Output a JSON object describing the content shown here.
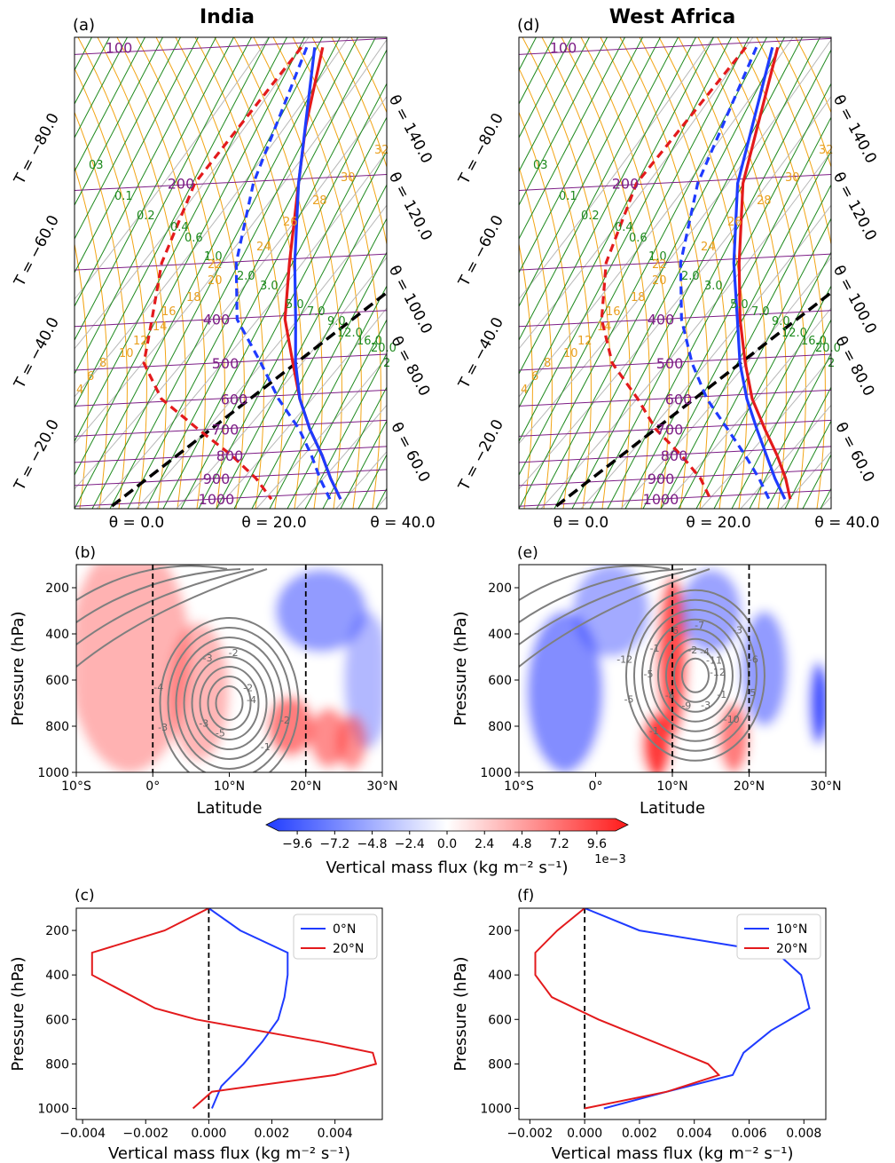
{
  "panels": {
    "a": {
      "letter": "(a)",
      "title": "India"
    },
    "d": {
      "letter": "(d)",
      "title": "West Africa"
    },
    "b": {
      "letter": "(b)"
    },
    "e": {
      "letter": "(e)"
    },
    "c": {
      "letter": "(c)"
    },
    "f": {
      "letter": "(f)"
    }
  },
  "colorbar": {
    "label": "Vertical mass flux (kg m⁻² s⁻¹)",
    "scale_note": "1e−3",
    "ticks": [
      "−9.6",
      "−7.2",
      "−4.8",
      "−2.4",
      "0.0",
      "2.4",
      "4.8",
      "7.2",
      "9.6"
    ],
    "colors": {
      "negative": "#1f3bff",
      "zero": "#ffffff",
      "positive": "#ff1a1a"
    }
  },
  "chart_data": [
    {
      "id": "a",
      "type": "line",
      "title": "India",
      "isobar_labels": [
        "100",
        "200",
        "400",
        "500",
        "600",
        "700",
        "800",
        "900",
        "1000"
      ],
      "left_labels": [
        "T = −80.0",
        "T = −60.0",
        "T = −40.0",
        "T = −20.0"
      ],
      "right_labels": [
        "θ = 140.0",
        "θ = 120.0",
        "θ = 100.0",
        "θ = 80.0",
        "θ = 60.0"
      ],
      "bottom_labels": [
        "θ = 0.0",
        "θ = 20.0",
        "θ = 40.0"
      ],
      "mixing_ratio_labels": [
        "03",
        "0.1",
        "0.2",
        "0.4",
        "0.6",
        "1.0",
        "2.0",
        "3.0",
        "5.0",
        "7.0",
        "9.0",
        "12.0",
        "16.0",
        "20.0",
        "2"
      ],
      "theta_e_labels": [
        "4",
        "6",
        "8",
        "10",
        "12",
        "14",
        "16",
        "18",
        "20",
        "22",
        "24",
        "26",
        "28",
        "30",
        "32"
      ],
      "series": [
        {
          "name": "",
          "color": "#e31a1c",
          "style": "solid",
          "pressure": [
            100,
            150,
            200,
            300,
            400,
            500,
            600,
            700,
            800,
            900,
            1000
          ],
          "temperature": [
            -82,
            -72,
            -63,
            -50,
            -40,
            -28,
            -18,
            -8,
            2,
            10,
            18
          ]
        },
        {
          "name": "",
          "color": "#e31a1c",
          "style": "dashed",
          "pressure": [
            100,
            200,
            300,
            400,
            500,
            600,
            700,
            800,
            900,
            1000
          ],
          "temperature": [
            -90,
            -102,
            -98,
            -90,
            -84,
            -70,
            -50,
            -32,
            -18,
            -8
          ]
        },
        {
          "name": "",
          "color": "#1f3bff",
          "style": "solid",
          "pressure": [
            100,
            200,
            300,
            400,
            500,
            600,
            700,
            800,
            900,
            1000
          ],
          "temperature": [
            -85,
            -63,
            -48,
            -36,
            -27,
            -18,
            -8,
            2,
            10,
            18
          ]
        },
        {
          "name": "",
          "color": "#1f3bff",
          "style": "dashed",
          "pressure": [
            100,
            200,
            300,
            400,
            500,
            600,
            700,
            800,
            900,
            1000
          ],
          "temperature": [
            -88,
            -80,
            -70,
            -58,
            -40,
            -26,
            -12,
            -2,
            6,
            14
          ]
        }
      ]
    },
    {
      "id": "d",
      "type": "line",
      "title": "West Africa",
      "isobar_labels": [
        "100",
        "200",
        "400",
        "500",
        "600",
        "700",
        "800",
        "900",
        "1000"
      ],
      "left_labels": [
        "T = −80.0",
        "T = −60.0",
        "T = −40.0",
        "T = −20.0"
      ],
      "right_labels": [
        "θ = 140.0",
        "θ = 120.0",
        "θ = 100.0",
        "θ = 80.0",
        "θ = 60.0"
      ],
      "bottom_labels": [
        "θ = 0.0",
        "θ = 20.0",
        "θ = 40.0"
      ],
      "mixing_ratio_labels": [
        "03",
        "0.1",
        "0.2",
        "0.4",
        "0.6",
        "1.0",
        "2.0",
        "3.0",
        "5.0",
        "7.0",
        "9.0",
        "12.0",
        "16.0",
        "20.0",
        "2"
      ],
      "theta_e_labels": [
        "4",
        "6",
        "8",
        "10",
        "12",
        "14",
        "16",
        "18",
        "20",
        "22",
        "24",
        "26",
        "28",
        "30",
        "32"
      ],
      "series": [
        {
          "name": "",
          "color": "#e31a1c",
          "style": "solid",
          "pressure": [
            100,
            200,
            300,
            400,
            500,
            600,
            700,
            800,
            900,
            1000
          ],
          "temperature": [
            -78,
            -63,
            -48,
            -36,
            -25,
            -15,
            -4,
            6,
            14,
            20
          ]
        },
        {
          "name": "",
          "color": "#e31a1c",
          "style": "dashed",
          "pressure": [
            100,
            200,
            300,
            400,
            500,
            600,
            700,
            800,
            900,
            1000
          ],
          "temperature": [
            -90,
            -103,
            -98,
            -88,
            -75,
            -58,
            -45,
            -30,
            -18,
            -10
          ]
        },
        {
          "name": "",
          "color": "#1f3bff",
          "style": "solid",
          "pressure": [
            100,
            200,
            300,
            400,
            500,
            600,
            700,
            800,
            900,
            1000
          ],
          "temperature": [
            -80,
            -65,
            -50,
            -37,
            -27,
            -17,
            -7,
            2,
            10,
            18
          ]
        },
        {
          "name": "",
          "color": "#1f3bff",
          "style": "dashed",
          "pressure": [
            100,
            200,
            300,
            400,
            500,
            600,
            700,
            800,
            900,
            1000
          ],
          "temperature": [
            -86,
            -80,
            -70,
            -58,
            -45,
            -32,
            -18,
            -6,
            4,
            12
          ]
        }
      ]
    },
    {
      "id": "b",
      "type": "heatmap",
      "xlabel": "Latitude",
      "ylabel": "Pressure (hPa)",
      "xticks": [
        "10°S",
        "0°",
        "10°N",
        "20°N",
        "30°N"
      ],
      "yticks": [
        "200",
        "400",
        "600",
        "800",
        "1000"
      ],
      "xlim": [
        -10,
        30
      ],
      "ylim": [
        1000,
        100
      ],
      "vlines": [
        0,
        20
      ],
      "contour_labels": [
        "-4",
        "-3",
        "-2",
        "-1",
        "-4",
        "-2",
        "-5",
        "-3",
        "-2",
        "-3"
      ],
      "flux_blobs": [
        {
          "lat": -3,
          "p": 500,
          "value": 1.5,
          "sx": 8,
          "sy": 500
        },
        {
          "lat": 6,
          "p": 650,
          "value": 1.2,
          "sx": 4,
          "sy": 300
        },
        {
          "lat": 22,
          "p": 300,
          "value": -3.5,
          "sx": 6,
          "sy": 180
        },
        {
          "lat": 28,
          "p": 600,
          "value": -1.5,
          "sx": 3,
          "sy": 300
        },
        {
          "lat": 18,
          "p": 800,
          "value": 5.0,
          "sx": 3,
          "sy": 130
        },
        {
          "lat": 23,
          "p": 850,
          "value": 4.0,
          "sx": 2.5,
          "sy": 130
        },
        {
          "lat": 26,
          "p": 870,
          "value": 3.5,
          "sx": 2,
          "sy": 120
        }
      ]
    },
    {
      "id": "e",
      "type": "heatmap",
      "xlabel": "Latitude",
      "ylabel": "Pressure (hPa)",
      "xticks": [
        "10°S",
        "0°",
        "10°N",
        "20°N",
        "30°N"
      ],
      "yticks": [
        "200",
        "400",
        "600",
        "800",
        "1000"
      ],
      "xlim": [
        -10,
        30
      ],
      "ylim": [
        1000,
        100
      ],
      "vlines": [
        10,
        20
      ],
      "contour_labels": [
        "-12",
        "-8",
        "-7",
        "-10",
        "-12",
        "-11",
        "-9",
        "-6",
        "-5",
        "-5",
        "-4",
        "-3",
        "-1",
        "-6",
        "-1",
        "-2",
        "-1",
        "-5",
        "-3"
      ],
      "flux_blobs": [
        {
          "lat": -4,
          "p": 650,
          "value": -4.5,
          "sx": 5,
          "sy": 350
        },
        {
          "lat": 2,
          "p": 300,
          "value": -2.5,
          "sx": 5,
          "sy": 200
        },
        {
          "lat": 10,
          "p": 500,
          "value": 8.0,
          "sx": 2,
          "sy": 350
        },
        {
          "lat": 8,
          "p": 880,
          "value": 9.0,
          "sx": 2,
          "sy": 140
        },
        {
          "lat": 18,
          "p": 850,
          "value": 5.0,
          "sx": 2,
          "sy": 150
        },
        {
          "lat": 15,
          "p": 300,
          "value": -3.0,
          "sx": 4,
          "sy": 180
        },
        {
          "lat": 22,
          "p": 550,
          "value": -3.5,
          "sx": 3,
          "sy": 250
        },
        {
          "lat": 29,
          "p": 700,
          "value": -9.0,
          "sx": 1.2,
          "sy": 180
        }
      ]
    },
    {
      "id": "c",
      "type": "line",
      "xlabel": "Vertical mass flux (kg m⁻² s⁻¹)",
      "ylabel": "Pressure (hPa)",
      "xlim": [
        -0.0042,
        0.0055
      ],
      "ylim": [
        1050,
        100
      ],
      "xticks": [
        "−0.004",
        "−0.002",
        "0.000",
        "0.002",
        "0.004"
      ],
      "yticks": [
        "200",
        "400",
        "600",
        "800",
        "1000"
      ],
      "legend": "top-right",
      "series": [
        {
          "name": "0°N",
          "color": "#1f3bff",
          "y": [
            100,
            200,
            300,
            400,
            500,
            600,
            700,
            800,
            900,
            1000
          ],
          "x": [
            0.0,
            0.001,
            0.0025,
            0.0025,
            0.0024,
            0.0022,
            0.0017,
            0.0011,
            0.0004,
            0.0001
          ]
        },
        {
          "name": "20°N",
          "color": "#e31a1c",
          "y": [
            100,
            200,
            300,
            400,
            550,
            600,
            700,
            750,
            800,
            850,
            925,
            1000
          ],
          "x": [
            0.0,
            -0.0014,
            -0.0037,
            -0.0037,
            -0.0017,
            -0.0004,
            0.0035,
            0.0052,
            0.0053,
            0.004,
            0.0001,
            -0.0005
          ]
        }
      ]
    },
    {
      "id": "f",
      "type": "line",
      "xlabel": "Vertical mass flux (kg m⁻² s⁻¹)",
      "ylabel": "Pressure (hPa)",
      "xlim": [
        -0.0024,
        0.0088
      ],
      "ylim": [
        1050,
        100
      ],
      "xticks": [
        "−0.002",
        "0.000",
        "0.002",
        "0.004",
        "0.006",
        "0.008"
      ],
      "yticks": [
        "200",
        "400",
        "600",
        "800",
        "1000"
      ],
      "legend": "top-right",
      "series": [
        {
          "name": "10°N",
          "color": "#1f3bff",
          "y": [
            100,
            200,
            300,
            400,
            550,
            650,
            750,
            850,
            925,
            1000
          ],
          "x": [
            0.0,
            0.002,
            0.007,
            0.0079,
            0.0082,
            0.0068,
            0.0058,
            0.0054,
            0.003,
            0.0007
          ]
        },
        {
          "name": "20°N",
          "color": "#e31a1c",
          "y": [
            100,
            200,
            300,
            400,
            500,
            600,
            700,
            800,
            850,
            925,
            1000
          ],
          "x": [
            0.0,
            -0.001,
            -0.0018,
            -0.0018,
            -0.0012,
            0.0005,
            0.0025,
            0.0045,
            0.0049,
            0.003,
            0.0
          ]
        }
      ]
    }
  ]
}
